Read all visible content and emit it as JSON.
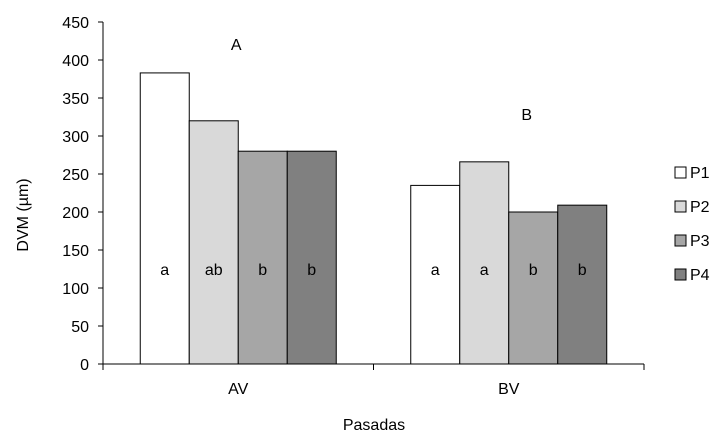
{
  "chart_data": {
    "type": "bar",
    "xlabel": "Pasadas",
    "ylabel": "DVM (µm)",
    "ylim": [
      0,
      450
    ],
    "yticks": [
      0,
      50,
      100,
      150,
      200,
      250,
      300,
      350,
      400,
      450
    ],
    "grid": false,
    "legend_position": "right",
    "categories": [
      "AV",
      "BV"
    ],
    "group_labels": [
      "A",
      "B"
    ],
    "series": [
      {
        "name": "P1",
        "values": [
          383,
          235
        ],
        "letters": [
          "a",
          "a"
        ],
        "color": "#ffffff"
      },
      {
        "name": "P2",
        "values": [
          320,
          266
        ],
        "letters": [
          "ab",
          "a"
        ],
        "color": "#d9d9d9"
      },
      {
        "name": "P3",
        "values": [
          280,
          200
        ],
        "letters": [
          "b",
          "b"
        ],
        "color": "#a6a6a6"
      },
      {
        "name": "P4",
        "values": [
          280,
          209
        ],
        "letters": [
          "b",
          "b"
        ],
        "color": "#808080"
      }
    ]
  }
}
